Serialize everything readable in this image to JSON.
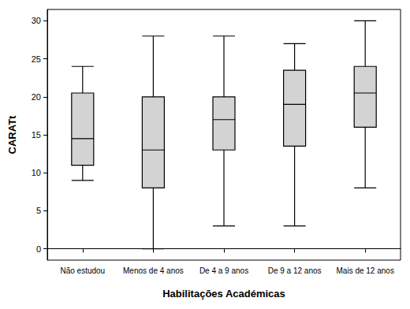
{
  "chart_data": {
    "type": "boxplot",
    "x_label": "Habilitações Académicas",
    "y_label": "CARATt",
    "categories": [
      "Não estudou",
      "Menos de 4 anos",
      "De 4 a 9 anos",
      "De 9 a 12 anos",
      "Mais de 12 anos"
    ],
    "values": [
      [
        9,
        11,
        14.5,
        20.5,
        24
      ],
      [
        0,
        8,
        13,
        20,
        28
      ],
      [
        3,
        13,
        17,
        20,
        28
      ],
      [
        3,
        13.5,
        19,
        23.5,
        27
      ],
      [
        8,
        16,
        20.5,
        24,
        30
      ]
    ],
    "color": "#d3d3d3",
    "ylim": [
      -1.5,
      31.5
    ],
    "yticks": [
      0,
      5,
      10,
      15,
      20,
      25,
      30
    ],
    "grid": false
  }
}
